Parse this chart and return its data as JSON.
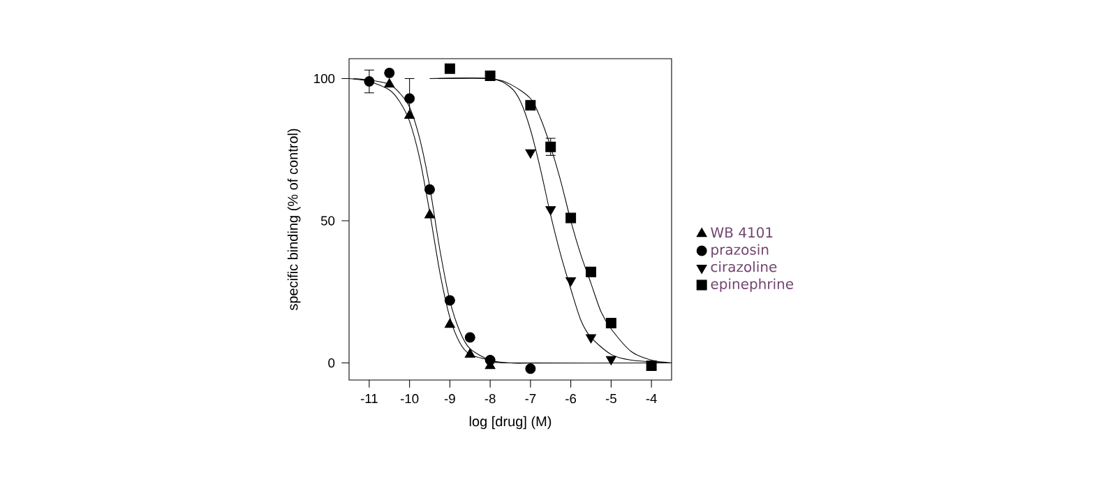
{
  "chart_data": {
    "type": "scatter",
    "xlabel": "log [drug] (M)",
    "ylabel": "specific binding (% of control)",
    "xlim": [
      -11.5,
      -3.5
    ],
    "ylim": [
      -6,
      107
    ],
    "xticks": [
      -11,
      -10,
      -9,
      -8,
      -7,
      -6,
      -5,
      -4
    ],
    "yticks": [
      0,
      50,
      100
    ],
    "legend": "right",
    "grid": false,
    "series": [
      {
        "name": "WB 4101",
        "marker": "triangle",
        "color": "#000000",
        "x": [
          -10.5,
          -10,
          -9.5,
          -9,
          -8.5,
          -8
        ],
        "values": [
          98,
          87,
          52,
          13.5,
          3,
          -1
        ]
      },
      {
        "name": "prazosin",
        "marker": "circle",
        "color": "#000000",
        "x": [
          -11,
          -10.5,
          -10,
          -9.5,
          -9,
          -8.5,
          -8,
          -7
        ],
        "values": [
          99,
          102,
          93,
          61,
          22,
          9,
          1,
          -2
        ],
        "errors": [
          4,
          null,
          7,
          null,
          null,
          null,
          null,
          null
        ]
      },
      {
        "name": "cirazoline",
        "marker": "triangle-down",
        "color": "#000000",
        "x": [
          -7,
          -6.5,
          -6,
          -5.5,
          -5
        ],
        "values": [
          74,
          54,
          29,
          9,
          1.3
        ]
      },
      {
        "name": "epinephrine",
        "marker": "square",
        "color": "#000000",
        "x": [
          -9,
          -8,
          -7,
          -6.5,
          -6,
          -5.5,
          -5,
          -4
        ],
        "values": [
          103.5,
          101,
          90.6,
          76,
          51,
          32,
          14,
          -1
        ],
        "errors": [
          null,
          null,
          null,
          3,
          null,
          null,
          null,
          null
        ]
      },
      {
        "type": "line",
        "marker": "none",
        "color": "#000000",
        "x": [
          -11.5,
          -11,
          -10.5,
          -10.25,
          -10,
          -9.75,
          -9.5,
          -9.25,
          -9,
          -8.75,
          -8.5,
          -8,
          -7.5,
          -3.5
        ],
        "values": [
          100,
          99,
          96,
          92,
          85,
          72,
          53,
          32,
          16,
          7,
          3,
          1,
          0,
          0
        ]
      },
      {
        "type": "line",
        "marker": "none",
        "color": "#000000",
        "x": [
          -11.4,
          -11,
          -10.5,
          -10.25,
          -10,
          -9.75,
          -9.5,
          -9.25,
          -9,
          -8.75,
          -8.5,
          -8,
          -7.5,
          -7
        ],
        "values": [
          100,
          99.5,
          98,
          95,
          90,
          79,
          62,
          40,
          22,
          11,
          5,
          1,
          0,
          0
        ]
      },
      {
        "type": "line",
        "marker": "none",
        "color": "#000000",
        "x": [
          -9.5,
          -8,
          -7.5,
          -7.25,
          -7,
          -6.75,
          -6.5,
          -6.25,
          -6,
          -5.75,
          -5.5,
          -5,
          -4.5,
          -3.6
        ],
        "values": [
          100,
          100,
          97,
          92,
          82,
          68,
          52,
          38,
          26,
          15,
          9,
          3,
          1,
          0
        ]
      },
      {
        "type": "line",
        "marker": "none",
        "color": "#000000",
        "x": [
          -9.3,
          -8,
          -7.5,
          -7,
          -6.75,
          -6.5,
          -6.25,
          -6,
          -5.75,
          -5.5,
          -5.25,
          -5,
          -4.5,
          -4,
          -3.5
        ],
        "values": [
          100,
          100,
          98,
          93,
          86,
          76,
          64,
          50,
          38,
          28,
          18,
          12,
          4,
          1,
          0
        ]
      }
    ]
  }
}
